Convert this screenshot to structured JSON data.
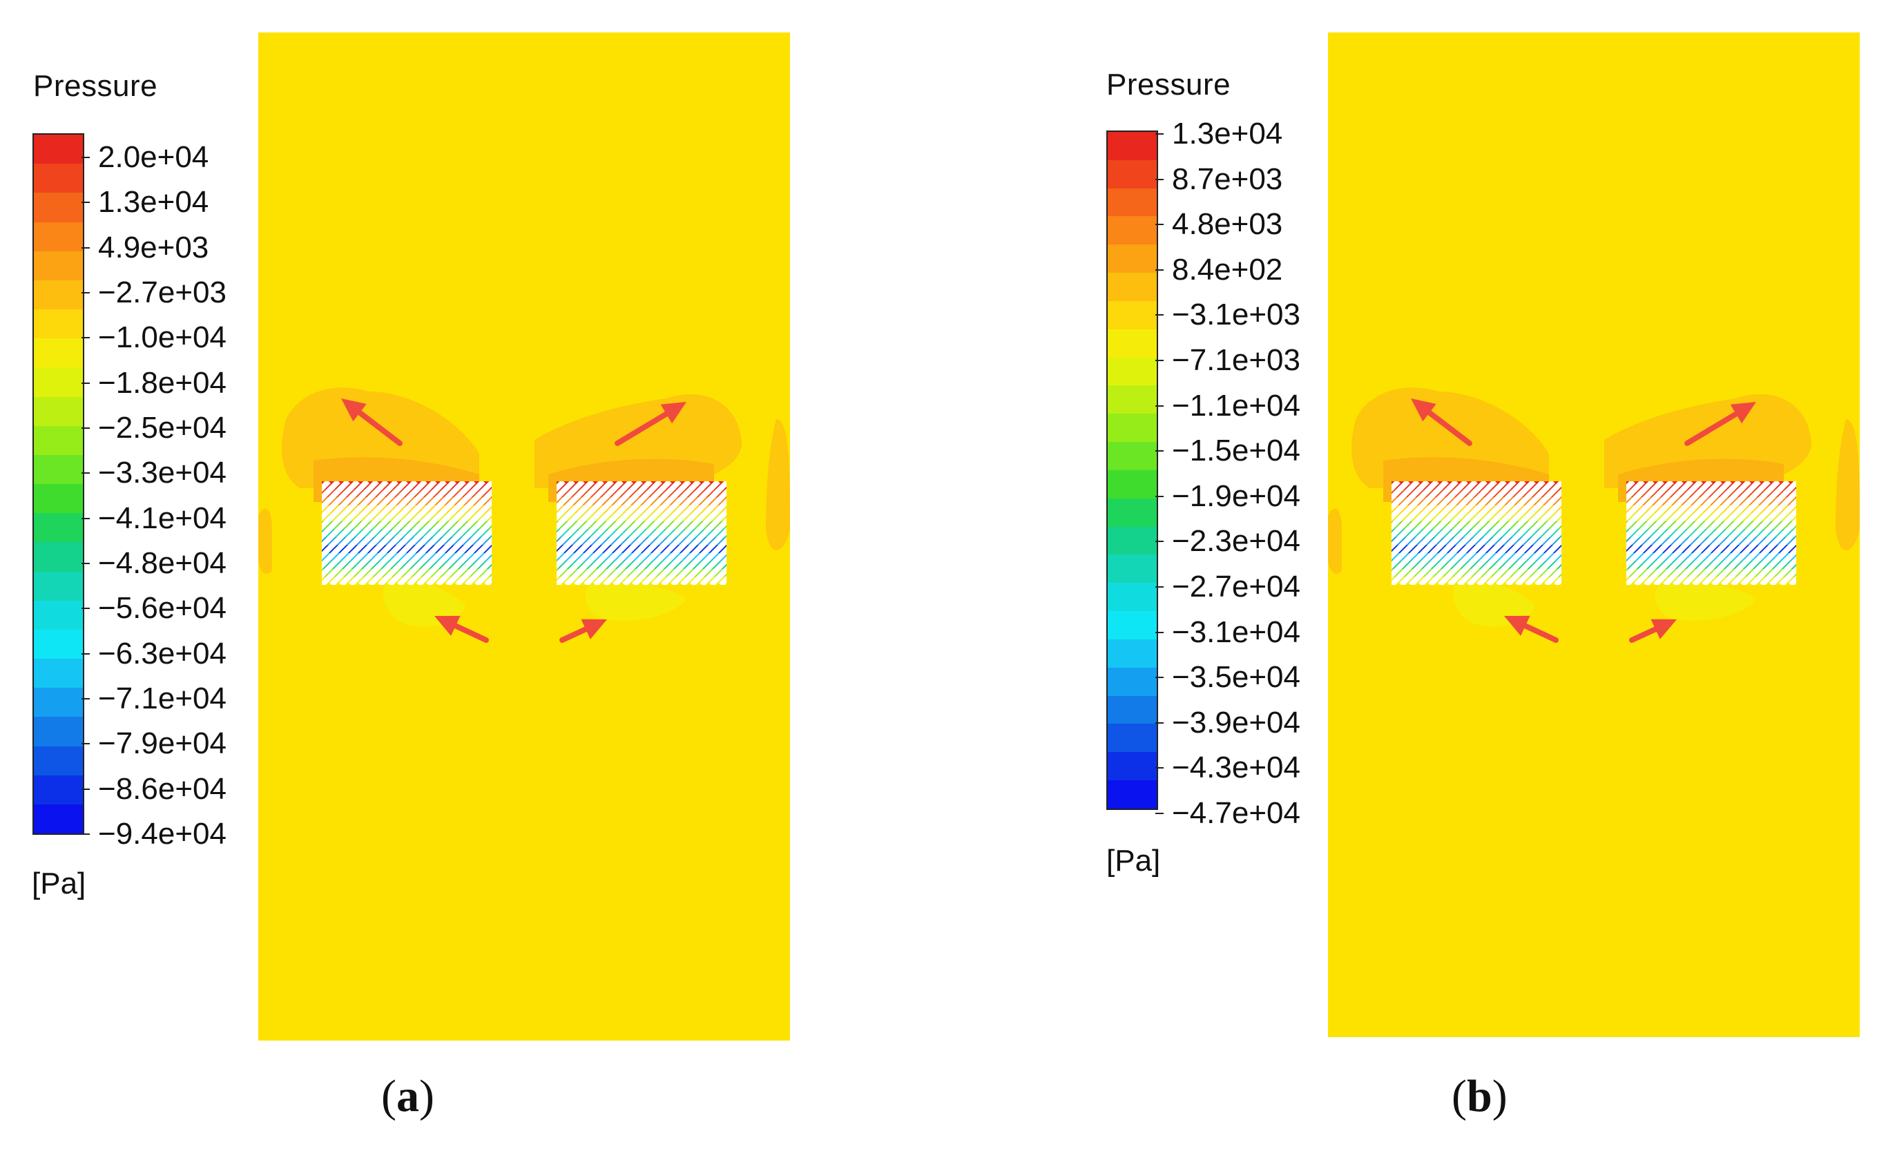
{
  "panel_a": {
    "legend_title": "Pressure",
    "legend_unit": "[Pa]",
    "ticks": [
      "2.0e+04",
      "1.3e+04",
      "4.9e+03",
      "−2.7e+03",
      "−1.0e+04",
      "−1.8e+04",
      "−2.5e+04",
      "−3.3e+04",
      "−4.1e+04",
      "−4.8e+04",
      "−5.6e+04",
      "−6.3e+04",
      "−7.1e+04",
      "−7.9e+04",
      "−8.6e+04",
      "−9.4e+04"
    ],
    "caption_open": "(",
    "caption_letter": "a",
    "caption_close": ")"
  },
  "panel_b": {
    "legend_title": "Pressure",
    "legend_unit": "[Pa]",
    "ticks": [
      "1.3e+04",
      "8.7e+03",
      "4.8e+03",
      "8.4e+02",
      "−3.1e+03",
      "−7.1e+03",
      "−1.1e+04",
      "−1.5e+04",
      "−1.9e+04",
      "−2.3e+04",
      "−2.7e+04",
      "−3.1e+04",
      "−3.5e+04",
      "−3.9e+04",
      "−4.3e+04",
      "−4.7e+04"
    ],
    "caption_open": "(",
    "caption_letter": "b",
    "caption_close": ")"
  },
  "colors": {
    "background_field": "#fde200",
    "arrow": "#f04a3e",
    "colormap": [
      "#e8271e",
      "#f0451c",
      "#f5661a",
      "#f98616",
      "#fba313",
      "#fdbe0f",
      "#fdd80a",
      "#f5ec0a",
      "#dff20c",
      "#bdf012",
      "#95ec19",
      "#6ae624",
      "#3fdc2e",
      "#1fd45a",
      "#14d28c",
      "#12d6b6",
      "#10dce0",
      "#0fe6f5",
      "#15c6f5",
      "#159ff0",
      "#127be8",
      "#0f55e6",
      "#0c30e8",
      "#0a12f0"
    ]
  }
}
